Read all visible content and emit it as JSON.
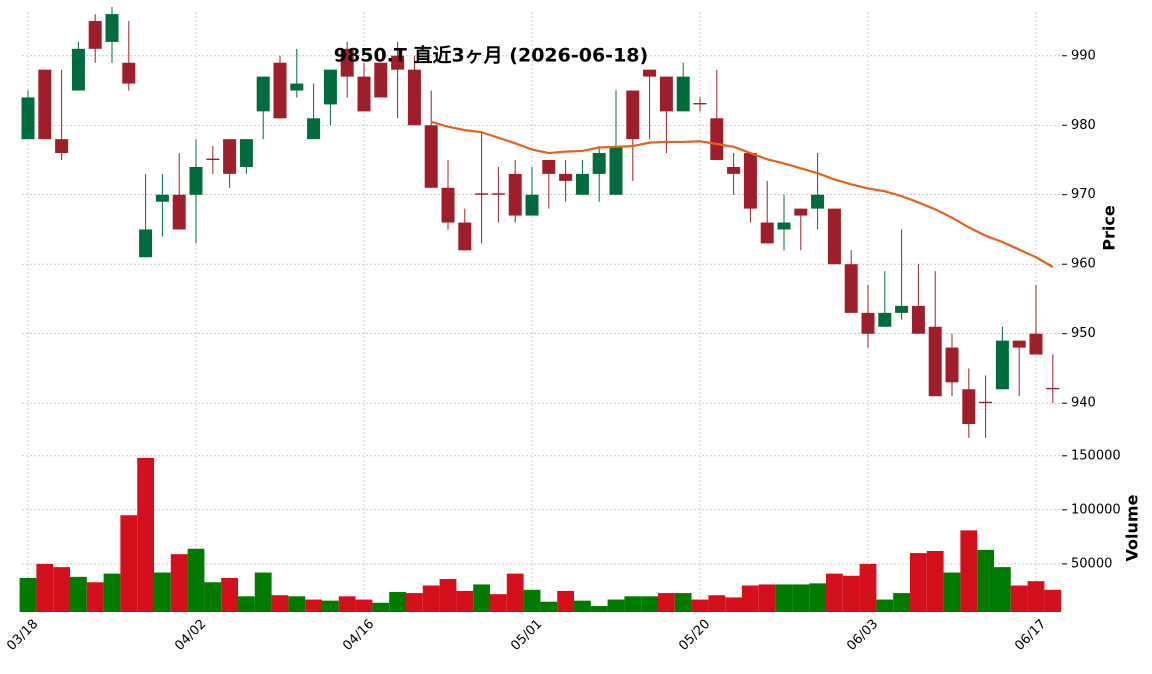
{
  "chart_data": {
    "type": "candlestick",
    "title": "9850.T 直近3ヶ月 (2026-06-18)",
    "ylabel": "Price",
    "volume_label": "Volume",
    "up_color": "#006b3c",
    "down_color": "#9e1f2a",
    "ma_color": "#e8601a",
    "open": [
      978,
      988,
      978,
      985,
      995,
      992,
      989,
      961,
      969,
      970,
      970,
      975.2,
      978,
      974,
      982,
      989,
      985,
      978,
      983,
      991,
      987,
      989,
      990,
      988,
      980,
      971,
      966,
      970.2,
      970.2,
      973,
      967,
      975,
      973,
      970,
      973,
      970,
      985,
      988,
      987,
      982,
      983.2,
      981,
      974,
      976,
      966,
      965,
      968,
      968,
      968,
      960,
      953,
      951,
      953,
      954,
      951,
      948,
      942,
      940.2,
      942,
      949,
      950,
      942.2
    ],
    "high": [
      985,
      988,
      988,
      992,
      996,
      997,
      995,
      973,
      973,
      976,
      978,
      977,
      978,
      978,
      987,
      990,
      991,
      986,
      988,
      992,
      989,
      989,
      992,
      990,
      985,
      975,
      968,
      979,
      974,
      975,
      974,
      975,
      975,
      975,
      977,
      985,
      985,
      988,
      987,
      989,
      984,
      988,
      976,
      976,
      972,
      970,
      968,
      976,
      968,
      962,
      957,
      959,
      965,
      960,
      959,
      950,
      945,
      944,
      951,
      949,
      957,
      947
    ],
    "low": [
      978,
      978,
      975,
      985,
      989,
      989,
      985,
      961,
      964,
      965,
      963,
      973,
      971,
      973,
      978,
      981,
      984,
      978,
      980,
      984,
      982,
      984,
      981,
      980,
      971,
      965,
      962,
      963,
      966,
      966,
      967,
      968,
      969,
      970,
      969,
      970,
      972,
      978,
      976,
      982,
      982,
      975,
      970,
      966,
      963,
      962,
      962,
      965,
      960,
      953,
      948,
      951,
      952,
      950,
      941,
      941,
      935,
      935,
      942,
      941,
      947,
      940
    ],
    "close": [
      984,
      978,
      976,
      991,
      991,
      996,
      986,
      965,
      970,
      965,
      974,
      975,
      973,
      978,
      987,
      981,
      986,
      981,
      988,
      987,
      982,
      984,
      988,
      980,
      971,
      966,
      962,
      970,
      970,
      967,
      970,
      973,
      972,
      973,
      976,
      977,
      978,
      987,
      982,
      987,
      983,
      975,
      973,
      968,
      963,
      966,
      967,
      970,
      960,
      953,
      950,
      953,
      954,
      950,
      941,
      943,
      937,
      940,
      949,
      948,
      947,
      942
    ],
    "ma": {
      "name": "MA",
      "values": [
        null,
        null,
        null,
        null,
        null,
        null,
        null,
        null,
        null,
        null,
        null,
        null,
        null,
        null,
        null,
        null,
        null,
        null,
        null,
        null,
        null,
        null,
        null,
        null,
        980.5,
        979.8,
        979.3,
        979.0,
        978.2,
        977.4,
        976.5,
        976.0,
        976.2,
        976.3,
        976.8,
        976.9,
        977.0,
        977.5,
        977.6,
        977.6,
        977.7,
        977.3,
        976.9,
        976.0,
        975.1,
        974.5,
        973.8,
        973.1,
        972.2,
        971.5,
        970.9,
        970.5,
        969.8,
        968.9,
        967.9,
        966.7,
        965.3,
        964.1,
        963.2,
        962.1,
        961.0,
        959.6
      ]
    },
    "volume": {
      "values": [
        37000,
        50000,
        47000,
        38000,
        33000,
        41000,
        95000,
        148000,
        42000,
        59000,
        64000,
        33000,
        37000,
        20000,
        42000,
        21000,
        20000,
        17000,
        16000,
        20000,
        17000,
        14000,
        24000,
        23000,
        30000,
        36000,
        25000,
        31000,
        22000,
        41000,
        26000,
        15000,
        25000,
        16000,
        11000,
        17000,
        20000,
        20000,
        23000,
        23000,
        17000,
        21000,
        19000,
        30000,
        31000,
        31000,
        31000,
        32000,
        41000,
        39000,
        50000,
        17000,
        23000,
        60000,
        62000,
        42000,
        81000,
        63000,
        47000,
        30000,
        34000,
        26000
      ],
      "colors": [
        "#007a00",
        "#d3101c",
        "#d3101c",
        "#007a00",
        "#d3101c",
        "#007a00",
        "#d3101c",
        "#d3101c",
        "#007a00",
        "#d3101c",
        "#007a00",
        "#007a00",
        "#d3101c",
        "#007a00",
        "#007a00",
        "#d3101c",
        "#007a00",
        "#d3101c",
        "#007a00",
        "#d3101c",
        "#d3101c",
        "#007a00",
        "#007a00",
        "#d3101c",
        "#d3101c",
        "#d3101c",
        "#d3101c",
        "#007a00",
        "#d3101c",
        "#d3101c",
        "#007a00",
        "#007a00",
        "#d3101c",
        "#007a00",
        "#007a00",
        "#007a00",
        "#007a00",
        "#007a00",
        "#d3101c",
        "#007a00",
        "#d3101c",
        "#d3101c",
        "#d3101c",
        "#d3101c",
        "#d3101c",
        "#007a00",
        "#007a00",
        "#007a00",
        "#d3101c",
        "#d3101c",
        "#d3101c",
        "#007a00",
        "#007a00",
        "#d3101c",
        "#d3101c",
        "#007a00",
        "#d3101c",
        "#007a00",
        "#007a00",
        "#d3101c",
        "#d3101c",
        "#d3101c"
      ]
    },
    "ylim": [
      934.7,
      996.3
    ],
    "yticks": [
      940,
      950,
      960,
      970,
      980,
      990
    ],
    "volume_ylim": [
      5500,
      160000
    ],
    "volume_yticks": [
      50000,
      100000,
      150000
    ],
    "xticks": [
      {
        "value": 0,
        "label": "03/18"
      },
      {
        "value": 10,
        "label": "04/02"
      },
      {
        "value": 20,
        "label": "04/16"
      },
      {
        "value": 30,
        "label": "05/01"
      },
      {
        "value": 40,
        "label": "05/20"
      },
      {
        "value": 50,
        "label": "06/03"
      },
      {
        "value": 60,
        "label": "06/17"
      }
    ],
    "grid": true
  }
}
